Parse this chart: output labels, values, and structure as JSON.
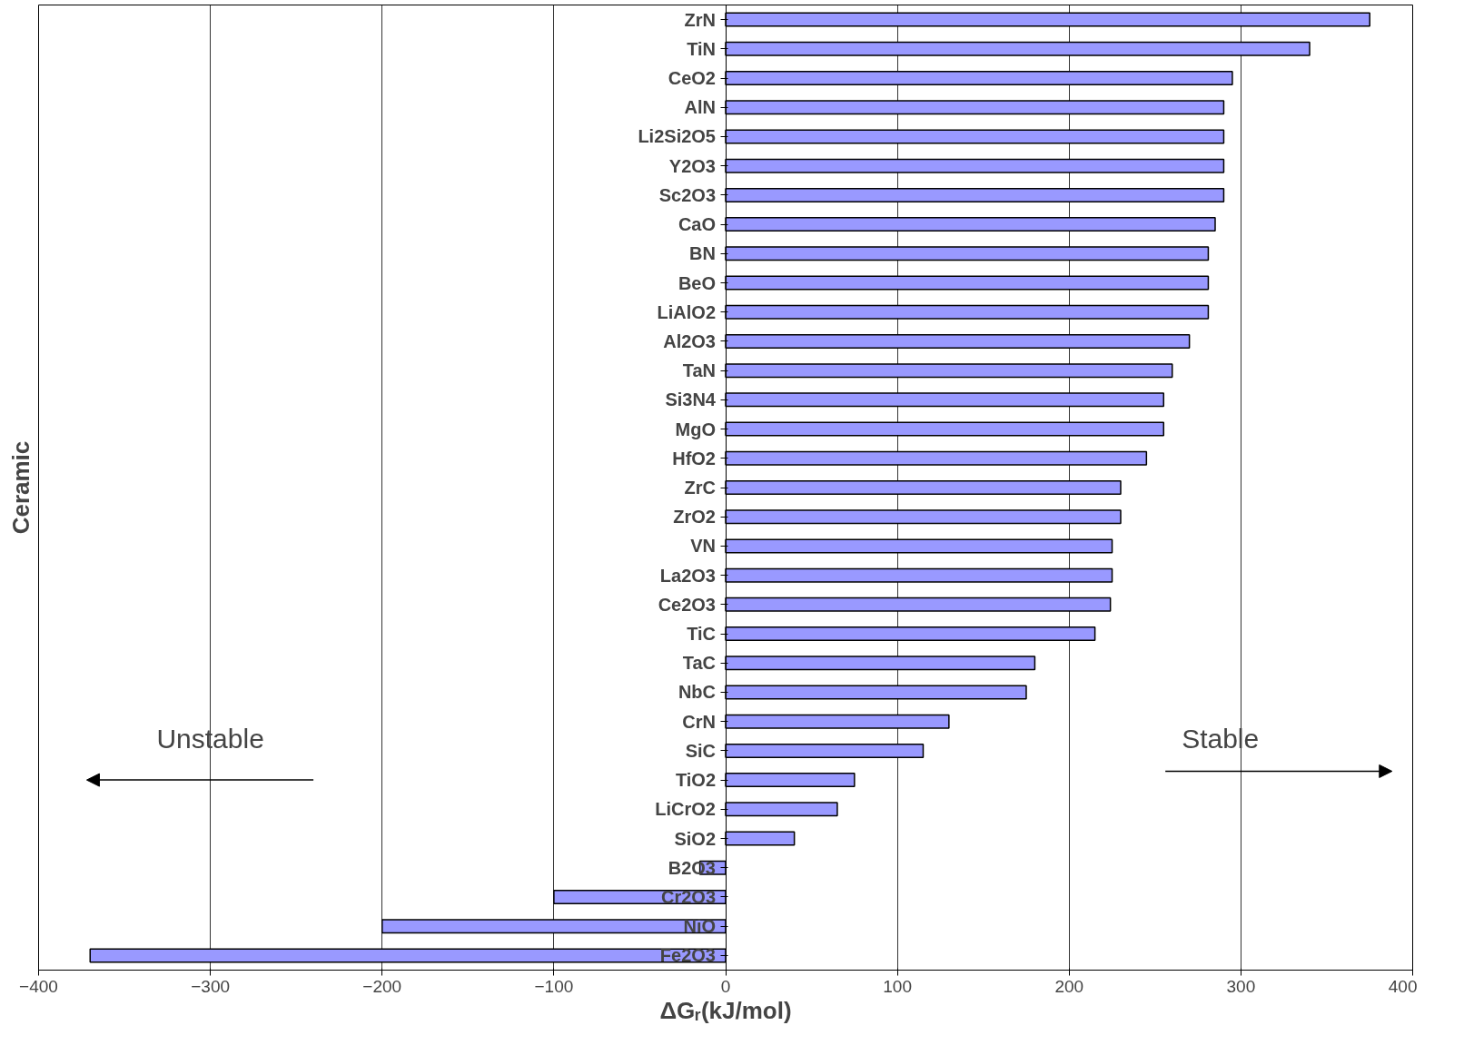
{
  "chart_data": {
    "type": "bar",
    "orientation": "horizontal",
    "xlabel": "ΔGᵣ(kJ/mol)",
    "ylabel": "Ceramic",
    "categories": [
      "ZrN",
      "TiN",
      "CeO2",
      "AlN",
      "Li2Si2O5",
      "Y2O3",
      "Sc2O3",
      "CaO",
      "BN",
      "BeO",
      "LiAlO2",
      "Al2O3",
      "TaN",
      "Si3N4",
      "MgO",
      "HfO2",
      "ZrC",
      "ZrO2",
      "VN",
      "La2O3",
      "Ce2O3",
      "TiC",
      "TaC",
      "NbC",
      "CrN",
      "SiC",
      "TiO2",
      "LiCrO2",
      "SiO2",
      "B2O3",
      "Cr2O3",
      "NiO",
      "Fe2O3"
    ],
    "values": [
      375,
      340,
      295,
      290,
      290,
      290,
      290,
      285,
      281,
      281,
      281,
      270,
      260,
      255,
      255,
      245,
      230,
      230,
      225,
      225,
      224,
      215,
      180,
      175,
      130,
      115,
      75,
      65,
      40,
      -15,
      -100,
      -200,
      -370
    ],
    "color": "#9999ff",
    "xlim": [
      -400,
      400
    ],
    "xticks": [
      -400,
      -300,
      -200,
      -100,
      0,
      100,
      200,
      300,
      400
    ],
    "grid": "x",
    "annotations": [
      "Unstable",
      "Stable"
    ]
  }
}
